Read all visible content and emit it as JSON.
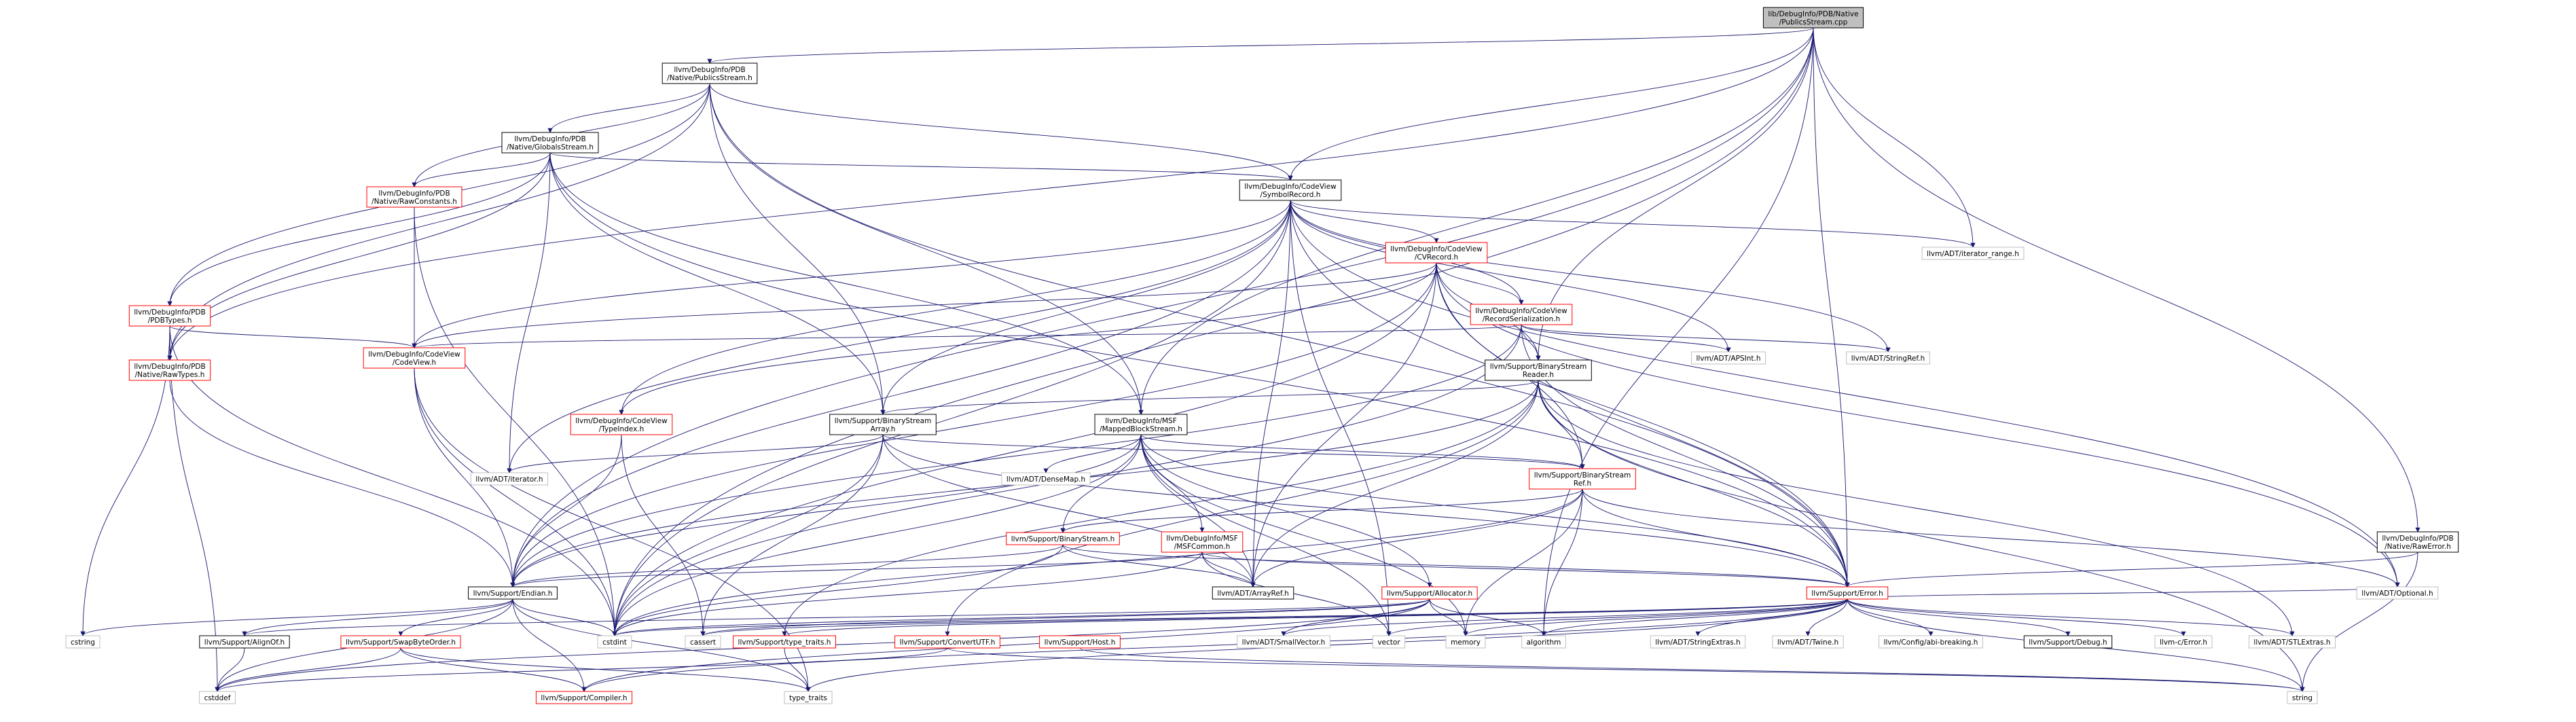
{
  "graph": {
    "title": "lib/DebugInfo/PDB/Native/PublicsStream.cpp",
    "colors": {
      "edge": "#191970",
      "root_fill": "#bfbfbf",
      "link_stroke": "#ff0000",
      "system_stroke": "#bfbfbf",
      "plain_stroke": "#000000"
    },
    "nodes": [
      {
        "id": "root",
        "label": [
          "lib/DebugInfo/PDB/Native",
          "/PublicsStream.cpp"
        ],
        "kind": "root"
      },
      {
        "id": "publics_h",
        "label": [
          "llvm/DebugInfo/PDB",
          "/Native/PublicsStream.h"
        ],
        "kind": "plain"
      },
      {
        "id": "globals_h",
        "label": [
          "llvm/DebugInfo/PDB",
          "/Native/GlobalsStream.h"
        ],
        "kind": "plain"
      },
      {
        "id": "rawconst",
        "label": [
          "llvm/DebugInfo/PDB",
          "/Native/RawConstants.h"
        ],
        "kind": "link"
      },
      {
        "id": "symrec",
        "label": [
          "llvm/DebugInfo/CodeView",
          "/SymbolRecord.h"
        ],
        "kind": "plain"
      },
      {
        "id": "iterrange",
        "label": [
          "llvm/ADT/iterator_range.h"
        ],
        "kind": "system"
      },
      {
        "id": "cvrecord",
        "label": [
          "llvm/DebugInfo/CodeView",
          "/CVRecord.h"
        ],
        "kind": "link"
      },
      {
        "id": "recser",
        "label": [
          "llvm/DebugInfo/CodeView",
          "/RecordSerialization.h"
        ],
        "kind": "link"
      },
      {
        "id": "pdbtypes",
        "label": [
          "llvm/DebugInfo/PDB",
          "/PDBTypes.h"
        ],
        "kind": "link"
      },
      {
        "id": "codeview",
        "label": [
          "llvm/DebugInfo/CodeView",
          "/CodeView.h"
        ],
        "kind": "link"
      },
      {
        "id": "rawtypes",
        "label": [
          "llvm/DebugInfo/PDB",
          "/Native/RawTypes.h"
        ],
        "kind": "link"
      },
      {
        "id": "apsint",
        "label": [
          "llvm/ADT/APSInt.h"
        ],
        "kind": "system"
      },
      {
        "id": "stringref",
        "label": [
          "llvm/ADT/StringRef.h"
        ],
        "kind": "system"
      },
      {
        "id": "bsreader",
        "label": [
          "llvm/Support/BinaryStream",
          "Reader.h"
        ],
        "kind": "plain"
      },
      {
        "id": "typeindex",
        "label": [
          "llvm/DebugInfo/CodeView",
          "/TypeIndex.h"
        ],
        "kind": "link"
      },
      {
        "id": "bsarray",
        "label": [
          "llvm/Support/BinaryStream",
          "Array.h"
        ],
        "kind": "plain"
      },
      {
        "id": "mapped",
        "label": [
          "llvm/DebugInfo/MSF",
          "/MappedBlockStream.h"
        ],
        "kind": "plain"
      },
      {
        "id": "adtiter",
        "label": [
          "llvm/ADT/iterator.h"
        ],
        "kind": "system"
      },
      {
        "id": "densemap",
        "label": [
          "llvm/ADT/DenseMap.h"
        ],
        "kind": "system"
      },
      {
        "id": "bsref",
        "label": [
          "llvm/Support/BinaryStream",
          "Ref.h"
        ],
        "kind": "link"
      },
      {
        "id": "rawerror",
        "label": [
          "llvm/DebugInfo/PDB",
          "/Native/RawError.h"
        ],
        "kind": "plain"
      },
      {
        "id": "bstream",
        "label": [
          "llvm/Support/BinaryStream.h"
        ],
        "kind": "link"
      },
      {
        "id": "msfcommon",
        "label": [
          "llvm/DebugInfo/MSF",
          "/MSFCommon.h"
        ],
        "kind": "link"
      },
      {
        "id": "arrayref",
        "label": [
          "llvm/ADT/ArrayRef.h"
        ],
        "kind": "plain"
      },
      {
        "id": "endian",
        "label": [
          "llvm/Support/Endian.h"
        ],
        "kind": "plain"
      },
      {
        "id": "allocator",
        "label": [
          "llvm/Support/Allocator.h"
        ],
        "kind": "link"
      },
      {
        "id": "error",
        "label": [
          "llvm/Support/Error.h"
        ],
        "kind": "link"
      },
      {
        "id": "cstring",
        "label": [
          "cstring"
        ],
        "kind": "system"
      },
      {
        "id": "alignof",
        "label": [
          "llvm/Support/AlignOf.h"
        ],
        "kind": "plain"
      },
      {
        "id": "swapbyte",
        "label": [
          "llvm/Support/SwapByteOrder.h"
        ],
        "kind": "link"
      },
      {
        "id": "cstdint",
        "label": [
          "cstdint"
        ],
        "kind": "system"
      },
      {
        "id": "cassert",
        "label": [
          "cassert"
        ],
        "kind": "system"
      },
      {
        "id": "typetraits_h",
        "label": [
          "llvm/Support/type_traits.h"
        ],
        "kind": "link"
      },
      {
        "id": "convertutf",
        "label": [
          "llvm/Support/ConvertUTF.h"
        ],
        "kind": "link"
      },
      {
        "id": "host",
        "label": [
          "llvm/Support/Host.h"
        ],
        "kind": "link"
      },
      {
        "id": "smallvector",
        "label": [
          "llvm/ADT/SmallVector.h"
        ],
        "kind": "system"
      },
      {
        "id": "vector",
        "label": [
          "vector"
        ],
        "kind": "system"
      },
      {
        "id": "memory",
        "label": [
          "memory"
        ],
        "kind": "system"
      },
      {
        "id": "algorithm",
        "label": [
          "algorithm"
        ],
        "kind": "system"
      },
      {
        "id": "stringextras",
        "label": [
          "llvm/ADT/StringExtras.h"
        ],
        "kind": "system"
      },
      {
        "id": "twine",
        "label": [
          "llvm/ADT/Twine.h"
        ],
        "kind": "system"
      },
      {
        "id": "abibreak",
        "label": [
          "llvm/Config/abi-breaking.h"
        ],
        "kind": "system"
      },
      {
        "id": "debug",
        "label": [
          "llvm/Support/Debug.h"
        ],
        "kind": "plain"
      },
      {
        "id": "llvmc",
        "label": [
          "llvm-c/Error.h"
        ],
        "kind": "system"
      },
      {
        "id": "stlextras",
        "label": [
          "llvm/ADT/STLExtras.h"
        ],
        "kind": "system"
      },
      {
        "id": "optional",
        "label": [
          "llvm/ADT/Optional.h"
        ],
        "kind": "system"
      },
      {
        "id": "cstddef",
        "label": [
          "cstddef"
        ],
        "kind": "system"
      },
      {
        "id": "compiler",
        "label": [
          "llvm/Support/Compiler.h"
        ],
        "kind": "link"
      },
      {
        "id": "typetraits",
        "label": [
          "type_traits"
        ],
        "kind": "system"
      },
      {
        "id": "string",
        "label": [
          "string"
        ],
        "kind": "system"
      }
    ],
    "edges": [
      [
        "root",
        "publics_h"
      ],
      [
        "root",
        "symrec"
      ],
      [
        "root",
        "iterrange"
      ],
      [
        "root",
        "bsreader"
      ],
      [
        "root",
        "mapped"
      ],
      [
        "root",
        "rawerror"
      ],
      [
        "root",
        "endian"
      ],
      [
        "root",
        "error"
      ],
      [
        "root",
        "rawtypes"
      ],
      [
        "root",
        "algorithm"
      ],
      [
        "root",
        "cstdint"
      ],
      [
        "publics_h",
        "globals_h"
      ],
      [
        "publics_h",
        "rawconst"
      ],
      [
        "publics_h",
        "symrec"
      ],
      [
        "publics_h",
        "pdbtypes"
      ],
      [
        "publics_h",
        "rawtypes"
      ],
      [
        "publics_h",
        "bsarray"
      ],
      [
        "publics_h",
        "mapped"
      ],
      [
        "publics_h",
        "error"
      ],
      [
        "globals_h",
        "rawconst"
      ],
      [
        "globals_h",
        "pdbtypes"
      ],
      [
        "globals_h",
        "rawtypes"
      ],
      [
        "globals_h",
        "adtiter"
      ],
      [
        "globals_h",
        "bsarray"
      ],
      [
        "globals_h",
        "mapped"
      ],
      [
        "globals_h",
        "symrec"
      ],
      [
        "globals_h",
        "error"
      ],
      [
        "rawconst",
        "codeview"
      ],
      [
        "rawconst",
        "cstdint"
      ],
      [
        "symrec",
        "iterrange"
      ],
      [
        "symrec",
        "cvrecord"
      ],
      [
        "symrec",
        "recser"
      ],
      [
        "symrec",
        "apsint"
      ],
      [
        "symrec",
        "stringref"
      ],
      [
        "symrec",
        "codeview"
      ],
      [
        "symrec",
        "typeindex"
      ],
      [
        "symrec",
        "arrayref"
      ],
      [
        "symrec",
        "bsarray"
      ],
      [
        "symrec",
        "endian"
      ],
      [
        "symrec",
        "error"
      ],
      [
        "symrec",
        "optional"
      ],
      [
        "symrec",
        "adtiter"
      ],
      [
        "symrec",
        "cstdint"
      ],
      [
        "symrec",
        "vector"
      ],
      [
        "cvrecord",
        "recser"
      ],
      [
        "cvrecord",
        "typeindex"
      ],
      [
        "cvrecord",
        "bsreader"
      ],
      [
        "cvrecord",
        "bsref"
      ],
      [
        "cvrecord",
        "arrayref"
      ],
      [
        "cvrecord",
        "endian"
      ],
      [
        "cvrecord",
        "error"
      ],
      [
        "cvrecord",
        "optional"
      ],
      [
        "cvrecord",
        "cstdint"
      ],
      [
        "cvrecord",
        "codeview"
      ],
      [
        "recser",
        "apsint"
      ],
      [
        "recser",
        "stringref"
      ],
      [
        "recser",
        "codeview"
      ],
      [
        "recser",
        "bsreader"
      ],
      [
        "recser",
        "endian"
      ],
      [
        "recser",
        "error"
      ],
      [
        "recser",
        "cstdint"
      ],
      [
        "pdbtypes",
        "codeview"
      ],
      [
        "pdbtypes",
        "rawtypes"
      ],
      [
        "pdbtypes",
        "cstring"
      ],
      [
        "pdbtypes",
        "cstdint"
      ],
      [
        "pdbtypes",
        "cstddef"
      ],
      [
        "codeview",
        "endian"
      ],
      [
        "codeview",
        "cstdint"
      ],
      [
        "codeview",
        "typetraits"
      ],
      [
        "rawtypes",
        "endian"
      ],
      [
        "bsreader",
        "bsarray"
      ],
      [
        "bsreader",
        "bsref"
      ],
      [
        "bsreader",
        "arrayref"
      ],
      [
        "bsreader",
        "endian"
      ],
      [
        "bsreader",
        "error"
      ],
      [
        "bsreader",
        "convertutf"
      ],
      [
        "bsreader",
        "typetraits_h"
      ],
      [
        "bsreader",
        "stlextras"
      ],
      [
        "bsreader",
        "string"
      ],
      [
        "typeindex",
        "endian"
      ],
      [
        "typeindex",
        "cassert"
      ],
      [
        "typeindex",
        "cinttypes"
      ],
      [
        "bsarray",
        "bsref"
      ],
      [
        "bsarray",
        "adtiter"
      ],
      [
        "bsarray",
        "arrayref"
      ],
      [
        "bsarray",
        "error"
      ],
      [
        "bsarray",
        "cassert"
      ],
      [
        "bsarray",
        "cstdint"
      ],
      [
        "mapped",
        "densemap"
      ],
      [
        "mapped",
        "bsref"
      ],
      [
        "mapped",
        "bstream"
      ],
      [
        "mapped",
        "msfcommon"
      ],
      [
        "mapped",
        "arrayref"
      ],
      [
        "mapped",
        "allocator"
      ],
      [
        "mapped",
        "endian"
      ],
      [
        "mapped",
        "error"
      ],
      [
        "mapped",
        "cstdint"
      ],
      [
        "mapped",
        "memory"
      ],
      [
        "mapped",
        "vector"
      ],
      [
        "bsref",
        "bstream"
      ],
      [
        "bsref",
        "arrayref"
      ],
      [
        "bsref",
        "optional"
      ],
      [
        "bsref",
        "error"
      ],
      [
        "bsref",
        "algorithm"
      ],
      [
        "bsref",
        "cstdint"
      ],
      [
        "bsref",
        "memory"
      ],
      [
        "rawerror",
        "error"
      ],
      [
        "rawerror",
        "string"
      ],
      [
        "bstream",
        "arrayref"
      ],
      [
        "bstream",
        "endian"
      ],
      [
        "bstream",
        "error"
      ],
      [
        "bstream",
        "cstdint"
      ],
      [
        "msfcommon",
        "arrayref"
      ],
      [
        "msfcommon",
        "endian"
      ],
      [
        "msfcommon",
        "error"
      ],
      [
        "msfcommon",
        "cstdint"
      ],
      [
        "msfcommon",
        "vector"
      ],
      [
        "endian",
        "alignof"
      ],
      [
        "endian",
        "swapbyte"
      ],
      [
        "endian",
        "compiler"
      ],
      [
        "endian",
        "cstddef"
      ],
      [
        "endian",
        "cstdint"
      ],
      [
        "endian",
        "cstring"
      ],
      [
        "endian",
        "typetraits"
      ],
      [
        "allocator",
        "smallvector"
      ],
      [
        "allocator",
        "alignof"
      ],
      [
        "allocator",
        "compiler"
      ],
      [
        "allocator",
        "algorithm"
      ],
      [
        "allocator",
        "cassert"
      ],
      [
        "allocator",
        "cstddef"
      ],
      [
        "allocator",
        "cstdint"
      ],
      [
        "allocator",
        "memory"
      ],
      [
        "error",
        "stringextras"
      ],
      [
        "error",
        "twine"
      ],
      [
        "error",
        "abibreak"
      ],
      [
        "error",
        "debug"
      ],
      [
        "error",
        "llvmc"
      ],
      [
        "error",
        "stlextras"
      ],
      [
        "error",
        "optional"
      ],
      [
        "error",
        "smallvector"
      ],
      [
        "error",
        "compiler"
      ],
      [
        "error",
        "typetraits_h"
      ],
      [
        "error",
        "algorithm"
      ],
      [
        "error",
        "cassert"
      ],
      [
        "error",
        "cstdint"
      ],
      [
        "error",
        "memory"
      ],
      [
        "error",
        "string"
      ],
      [
        "error",
        "vector"
      ],
      [
        "error",
        "typetraits"
      ],
      [
        "swapbyte",
        "compiler"
      ],
      [
        "swapbyte",
        "typetraits"
      ],
      [
        "swapbyte",
        "cstddef"
      ],
      [
        "typetraits_h",
        "typetraits"
      ],
      [
        "convertutf",
        "cstddef"
      ],
      [
        "convertutf",
        "string"
      ],
      [
        "host",
        "string"
      ],
      [
        "alignof",
        "cstddef"
      ]
    ]
  }
}
